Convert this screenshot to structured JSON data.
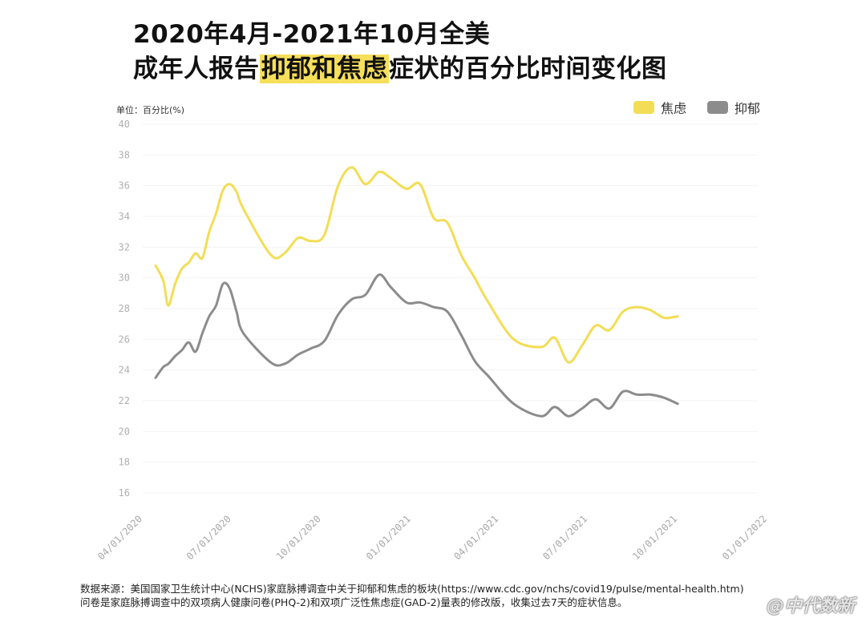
{
  "title": {
    "line1": "2020年4月-2021年10月全美",
    "line2_prefix": "成年人报告",
    "line2_highlight": "抑郁和焦虑",
    "line2_suffix": "症状的百分比时间变化图"
  },
  "unit_label": "单位：百分比(%)",
  "source": {
    "line1": "数据来源：美国国家卫生统计中心(NCHS)家庭脉搏调查中关于抑郁和焦虑的板块(https://www.cdc.gov/nchs/covid19/pulse/mental-health.htm)",
    "line2": "问卷是家庭脉搏调查中的双项病人健康问卷(PHQ-2)和双项广泛性焦虑症(GAD-2)量表的修改版，收集过去7天的症状信息。"
  },
  "watermark": "@中代数新",
  "chart_data": {
    "type": "line",
    "title": "2020年4月-2021年10月全美成年人报告抑郁和焦虑症状的百分比时间变化图",
    "ylabel": "单位：百分比(%)",
    "xlabel": "",
    "ylim": [
      16,
      40
    ],
    "yticks": [
      "16",
      "18",
      "20",
      "22",
      "24",
      "26",
      "28",
      "30",
      "32",
      "34",
      "36",
      "38",
      "40"
    ],
    "xticks": [
      "04/01/2020",
      "07/01/2020",
      "10/01/2020",
      "01/01/2021",
      "04/01/2021",
      "07/01/2021",
      "10/01/2021",
      "01/01/2022"
    ],
    "legend_position": "top-right",
    "series": [
      {
        "name": "焦虑",
        "color": "#f3dd55",
        "x": [
          "2020-04-24",
          "2020-05-02",
          "2020-05-07",
          "2020-05-14",
          "2020-05-21",
          "2020-05-28",
          "2020-06-04",
          "2020-06-11",
          "2020-06-18",
          "2020-06-25",
          "2020-07-02",
          "2020-07-09",
          "2020-07-16",
          "2020-07-23",
          "2020-08-20",
          "2020-09-03",
          "2020-09-17",
          "2020-09-30",
          "2020-10-14",
          "2020-10-28",
          "2020-11-11",
          "2020-11-25",
          "2020-12-09",
          "2020-12-21",
          "2021-01-06",
          "2021-01-20",
          "2021-02-03",
          "2021-02-17",
          "2021-03-03",
          "2021-03-17",
          "2021-03-31",
          "2021-04-26",
          "2021-05-24",
          "2021-06-07",
          "2021-06-21",
          "2021-07-05",
          "2021-07-19",
          "2021-08-02",
          "2021-08-16",
          "2021-08-30",
          "2021-09-13",
          "2021-09-27",
          "2021-10-11"
        ],
        "values": [
          30.8,
          29.8,
          28.2,
          29.6,
          30.6,
          31.0,
          31.6,
          31.3,
          33.0,
          34.2,
          35.7,
          36.1,
          35.6,
          34.5,
          31.5,
          31.6,
          32.6,
          32.4,
          32.8,
          36.0,
          37.2,
          36.1,
          36.9,
          36.5,
          35.8,
          36.1,
          33.9,
          33.6,
          31.5,
          30.0,
          28.4,
          26.0,
          25.5,
          26.1,
          24.5,
          25.6,
          26.9,
          26.6,
          27.8,
          28.1,
          27.9,
          27.4,
          27.5
        ]
      },
      {
        "name": "抑郁",
        "color": "#8c8c8c",
        "x": [
          "2020-04-24",
          "2020-05-02",
          "2020-05-07",
          "2020-05-14",
          "2020-05-21",
          "2020-05-28",
          "2020-06-04",
          "2020-06-11",
          "2020-06-18",
          "2020-06-25",
          "2020-07-02",
          "2020-07-09",
          "2020-07-16",
          "2020-07-23",
          "2020-08-20",
          "2020-09-03",
          "2020-09-17",
          "2020-09-30",
          "2020-10-14",
          "2020-10-28",
          "2020-11-11",
          "2020-11-25",
          "2020-12-09",
          "2020-12-21",
          "2021-01-06",
          "2021-01-20",
          "2021-02-03",
          "2021-02-17",
          "2021-03-03",
          "2021-03-17",
          "2021-03-31",
          "2021-04-26",
          "2021-05-24",
          "2021-06-07",
          "2021-06-21",
          "2021-07-05",
          "2021-07-19",
          "2021-08-02",
          "2021-08-16",
          "2021-08-30",
          "2021-09-13",
          "2021-09-27",
          "2021-10-11"
        ],
        "values": [
          23.5,
          24.2,
          24.4,
          24.9,
          25.3,
          25.8,
          25.2,
          26.4,
          27.5,
          28.2,
          29.6,
          29.3,
          27.8,
          26.4,
          24.5,
          24.4,
          25.0,
          25.4,
          25.9,
          27.6,
          28.6,
          28.9,
          30.2,
          29.4,
          28.4,
          28.4,
          28.1,
          27.8,
          26.3,
          24.6,
          23.6,
          21.8,
          21.0,
          21.6,
          21.0,
          21.5,
          22.1,
          21.5,
          22.6,
          22.4,
          22.4,
          22.2,
          21.8
        ]
      }
    ]
  }
}
